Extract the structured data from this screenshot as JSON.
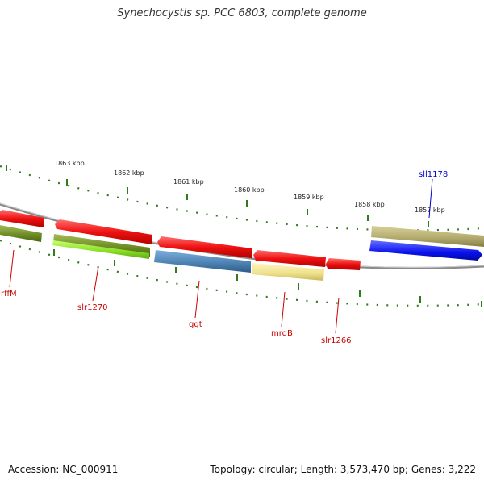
{
  "title": "Synechocystis sp. PCC 6803, complete genome",
  "footer": {
    "accession": "Accession: NC_000911",
    "topology": "Topology: circular; Length: 3,573,470 bp; Genes: 3,222"
  },
  "colors": {
    "backbone": "#8a8a8a",
    "tick": "#2e7d1a",
    "label_forward": "#cc0000",
    "label_reverse": "#0000cc",
    "gene_red": "#ee1111",
    "gene_olive": "#6b8a22",
    "gene_lime": "#88dd22",
    "gene_steel": "#4a7fb0",
    "gene_khaki": "#eee08a",
    "gene_tan": "#b0a86a",
    "gene_blue": "#0a12ee"
  },
  "scale": {
    "unit": "kbp",
    "labels": [
      "1863 kbp",
      "1862 kbp",
      "1861 kbp",
      "1860 kbp",
      "1859 kbp",
      "1858 kbp",
      "1857 kbp"
    ]
  },
  "genes": [
    {
      "label": "rffM",
      "strand": "forward"
    },
    {
      "label": "slr1270",
      "strand": "forward"
    },
    {
      "label": "ggt",
      "strand": "forward"
    },
    {
      "label": "mrdB",
      "strand": "forward"
    },
    {
      "label": "slr1266",
      "strand": "forward"
    },
    {
      "label": "sll1178",
      "strand": "reverse"
    }
  ]
}
